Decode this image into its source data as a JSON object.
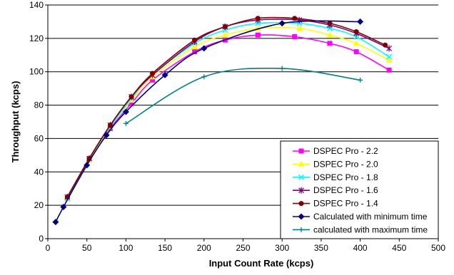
{
  "chart_data": {
    "type": "line",
    "title": "",
    "xlabel": "Input Count Rate (kcps)",
    "ylabel": "Throughput (kcps)",
    "xlim": [
      0,
      500
    ],
    "ylim": [
      0,
      140
    ],
    "x_ticks": [
      0,
      50,
      100,
      150,
      200,
      250,
      300,
      350,
      400,
      450,
      500
    ],
    "y_ticks": [
      0,
      20,
      40,
      60,
      80,
      100,
      120,
      140
    ],
    "grid": "horizontal",
    "legend_position": "bottom-right",
    "series": [
      {
        "name": "DSPEC Pro - 2.2",
        "color": "#ff00ff",
        "marker": "square",
        "points": [
          [
            25,
            24
          ],
          [
            53,
            47
          ],
          [
            80,
            66
          ],
          [
            107,
            81
          ],
          [
            134,
            95
          ],
          [
            188,
            112
          ],
          [
            227,
            119
          ],
          [
            269,
            122
          ],
          [
            316,
            121
          ],
          [
            361,
            117
          ],
          [
            395,
            112
          ],
          [
            437,
            101
          ]
        ]
      },
      {
        "name": "DSPEC Pro - 2.0",
        "color": "#ffff00",
        "marker": "triangle",
        "points": [
          [
            25,
            24
          ],
          [
            53,
            47
          ],
          [
            80,
            67
          ],
          [
            107,
            83
          ],
          [
            134,
            97
          ],
          [
            188,
            115
          ],
          [
            227,
            122
          ],
          [
            269,
            126
          ],
          [
            322,
            126
          ],
          [
            361,
            122
          ],
          [
            395,
            117
          ],
          [
            437,
            107
          ]
        ]
      },
      {
        "name": "DSPEC Pro - 1.8",
        "color": "#00ffff",
        "marker": "x",
        "points": [
          [
            25,
            24
          ],
          [
            53,
            48
          ],
          [
            80,
            67
          ],
          [
            107,
            84
          ],
          [
            134,
            98
          ],
          [
            188,
            117
          ],
          [
            227,
            125
          ],
          [
            269,
            129
          ],
          [
            322,
            129
          ],
          [
            361,
            126
          ],
          [
            395,
            121
          ],
          [
            437,
            109
          ]
        ]
      },
      {
        "name": "DSPEC Pro - 1.6",
        "color": "#800080",
        "marker": "star",
        "points": [
          [
            25,
            25
          ],
          [
            53,
            48
          ],
          [
            80,
            68
          ],
          [
            107,
            85
          ],
          [
            134,
            98
          ],
          [
            188,
            118
          ],
          [
            227,
            127
          ],
          [
            269,
            131
          ],
          [
            322,
            131
          ],
          [
            361,
            128
          ],
          [
            395,
            123
          ],
          [
            437,
            114
          ]
        ]
      },
      {
        "name": "DSPEC Pro - 1.4",
        "color": "#800000",
        "marker": "circle",
        "points": [
          [
            25,
            25
          ],
          [
            53,
            48
          ],
          [
            80,
            68
          ],
          [
            107,
            85
          ],
          [
            134,
            99
          ],
          [
            188,
            119
          ],
          [
            227,
            127
          ],
          [
            269,
            132
          ],
          [
            316,
            132
          ],
          [
            361,
            129
          ],
          [
            395,
            124
          ],
          [
            432,
            116
          ]
        ]
      },
      {
        "name": "Calculated with minimum time",
        "color": "#000080",
        "marker": "diamond",
        "points": [
          [
            10,
            10
          ],
          [
            20,
            19
          ],
          [
            50,
            44
          ],
          [
            75,
            62
          ],
          [
            100,
            76
          ],
          [
            150,
            98
          ],
          [
            200,
            114
          ],
          [
            300,
            129
          ],
          [
            400,
            130
          ]
        ]
      },
      {
        "name": "calculated with maximum time",
        "color": "#008080",
        "marker": "plus",
        "points": [
          [
            100,
            69
          ],
          [
            200,
            97
          ],
          [
            300,
            102
          ],
          [
            400,
            95
          ]
        ]
      }
    ]
  }
}
